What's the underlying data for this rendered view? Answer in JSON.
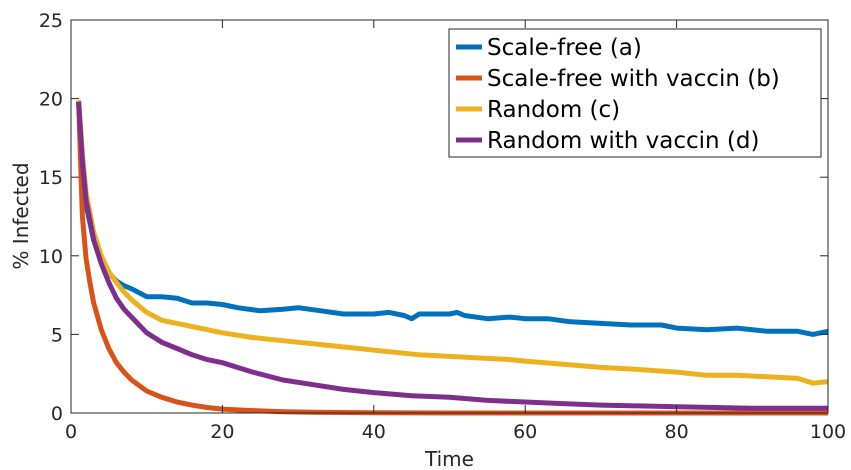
{
  "chart_data": {
    "type": "line",
    "xlabel": "Time",
    "ylabel": "% Infected",
    "xlim": [
      0,
      100
    ],
    "ylim": [
      0,
      25
    ],
    "xticks": [
      0,
      20,
      40,
      60,
      80,
      100
    ],
    "yticks": [
      0,
      5,
      10,
      15,
      20,
      25
    ],
    "grid": false,
    "legend_position": "top-right",
    "series": [
      {
        "name": "Scale-free (a)",
        "color": "#0072BD",
        "x": [
          1,
          1.5,
          2,
          3,
          4,
          5,
          6,
          7,
          8,
          10,
          12,
          14,
          16,
          18,
          20,
          22,
          25,
          28,
          30,
          33,
          36,
          40,
          42,
          44,
          45,
          46,
          48,
          50,
          51,
          52,
          55,
          58,
          60,
          63,
          66,
          70,
          74,
          78,
          80,
          84,
          88,
          92,
          96,
          98,
          100
        ],
        "y": [
          19.8,
          15.5,
          13.2,
          11.0,
          9.8,
          8.9,
          8.4,
          8.1,
          7.9,
          7.4,
          7.4,
          7.3,
          7.0,
          7.0,
          6.9,
          6.7,
          6.5,
          6.6,
          6.7,
          6.5,
          6.3,
          6.3,
          6.4,
          6.2,
          6.0,
          6.3,
          6.3,
          6.3,
          6.4,
          6.2,
          6.0,
          6.1,
          6.0,
          6.0,
          5.8,
          5.7,
          5.6,
          5.6,
          5.4,
          5.3,
          5.4,
          5.2,
          5.2,
          5.0,
          5.2
        ]
      },
      {
        "name": "Scale-free with vaccin (b)",
        "color": "#D95319",
        "x": [
          1,
          1.5,
          2,
          2.5,
          3,
          4,
          5,
          6,
          7,
          8,
          10,
          12,
          14,
          16,
          18,
          20,
          24,
          28,
          32,
          40,
          50,
          60,
          80,
          100
        ],
        "y": [
          19.8,
          12.5,
          9.8,
          8.3,
          7.0,
          5.3,
          4.1,
          3.2,
          2.6,
          2.1,
          1.4,
          1.0,
          0.7,
          0.5,
          0.35,
          0.25,
          0.15,
          0.08,
          0.05,
          0.02,
          0.0,
          0.0,
          0.0,
          0.0
        ]
      },
      {
        "name": "Random (c)",
        "color": "#EDB120",
        "x": [
          1,
          1.5,
          2,
          3,
          4,
          5,
          6,
          7,
          8,
          10,
          12,
          15,
          18,
          20,
          24,
          28,
          32,
          34,
          38,
          42,
          46,
          50,
          54,
          58,
          60,
          65,
          70,
          74,
          80,
          84,
          88,
          92,
          96,
          98,
          100
        ],
        "y": [
          19.9,
          16.5,
          14.0,
          11.5,
          10.0,
          9.0,
          8.3,
          7.7,
          7.2,
          6.4,
          5.9,
          5.6,
          5.3,
          5.1,
          4.8,
          4.6,
          4.4,
          4.3,
          4.1,
          3.9,
          3.7,
          3.6,
          3.5,
          3.4,
          3.3,
          3.1,
          2.9,
          2.8,
          2.6,
          2.4,
          2.4,
          2.3,
          2.2,
          1.9,
          2.0
        ]
      },
      {
        "name": "Random with vaccin (d)",
        "color": "#7E2F8E",
        "x": [
          1,
          1.5,
          2,
          3,
          4,
          5,
          6,
          7,
          8,
          10,
          12,
          14,
          16,
          18,
          20,
          24,
          28,
          32,
          36,
          40,
          45,
          50,
          55,
          60,
          65,
          70,
          75,
          80,
          85,
          90,
          95,
          100
        ],
        "y": [
          19.8,
          16.0,
          13.5,
          11.0,
          9.5,
          8.3,
          7.3,
          6.6,
          6.1,
          5.1,
          4.5,
          4.1,
          3.7,
          3.4,
          3.2,
          2.6,
          2.1,
          1.8,
          1.5,
          1.3,
          1.1,
          1.0,
          0.8,
          0.7,
          0.6,
          0.5,
          0.45,
          0.4,
          0.35,
          0.3,
          0.3,
          0.3
        ]
      }
    ]
  }
}
